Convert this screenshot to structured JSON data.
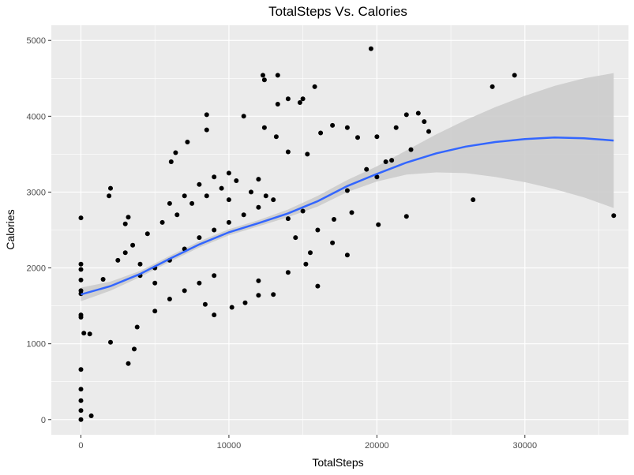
{
  "chart_data": {
    "type": "scatter",
    "title": "TotalSteps Vs. Calories",
    "xlabel": "TotalSteps",
    "ylabel": "Calories",
    "xlim": [
      -2000,
      37000
    ],
    "ylim": [
      -200,
      5200
    ],
    "x_ticks": [
      0,
      10000,
      20000,
      30000
    ],
    "y_ticks": [
      0,
      1000,
      2000,
      3000,
      4000,
      5000
    ],
    "grid": true,
    "background": "#ebebeb",
    "grid_color": "#ffffff",
    "point_color": "#000000",
    "trend_color": "#3366ff",
    "band_color": "#cccccc",
    "points_sample": [
      [
        0,
        0
      ],
      [
        0,
        120
      ],
      [
        0,
        250
      ],
      [
        0,
        400
      ],
      [
        0,
        660
      ],
      [
        0,
        2660
      ],
      [
        0,
        1350
      ],
      [
        0,
        1380
      ],
      [
        0,
        1660
      ],
      [
        0,
        1700
      ],
      [
        0,
        1840
      ],
      [
        0,
        1980
      ],
      [
        0,
        2050
      ],
      [
        700,
        50
      ],
      [
        200,
        1140
      ],
      [
        600,
        1130
      ],
      [
        2000,
        1020
      ],
      [
        3200,
        740
      ],
      [
        3600,
        930
      ],
      [
        3800,
        1220
      ],
      [
        1900,
        2950
      ],
      [
        2000,
        3050
      ],
      [
        3000,
        2580
      ],
      [
        3200,
        2670
      ],
      [
        6100,
        3400
      ],
      [
        6400,
        3520
      ],
      [
        7200,
        3660
      ],
      [
        8500,
        3820
      ],
      [
        8500,
        4020
      ],
      [
        10000,
        3250
      ],
      [
        11000,
        4000
      ],
      [
        12000,
        3170
      ],
      [
        12400,
        3850
      ],
      [
        12300,
        4540
      ],
      [
        12400,
        4480
      ],
      [
        13300,
        4540
      ],
      [
        13300,
        4160
      ],
      [
        14000,
        4230
      ],
      [
        14800,
        4180
      ],
      [
        15000,
        4230
      ],
      [
        15800,
        4390
      ],
      [
        13200,
        3730
      ],
      [
        14000,
        3530
      ],
      [
        15300,
        3500
      ],
      [
        16200,
        3780
      ],
      [
        17000,
        3880
      ],
      [
        18000,
        3850
      ],
      [
        18700,
        3720
      ],
      [
        19600,
        4890
      ],
      [
        20000,
        3730
      ],
      [
        21300,
        3850
      ],
      [
        22000,
        4020
      ],
      [
        22800,
        4040
      ],
      [
        23200,
        3930
      ],
      [
        20100,
        2570
      ],
      [
        22000,
        2680
      ],
      [
        18000,
        3020
      ],
      [
        20000,
        3200
      ],
      [
        21000,
        3420
      ],
      [
        17100,
        2640
      ],
      [
        17000,
        2330
      ],
      [
        18300,
        2730
      ],
      [
        18000,
        2170
      ],
      [
        16000,
        1760
      ],
      [
        15200,
        2050
      ],
      [
        14000,
        1940
      ],
      [
        12000,
        1640
      ],
      [
        13000,
        1650
      ],
      [
        9000,
        1380
      ],
      [
        8400,
        1520
      ],
      [
        10200,
        1480
      ],
      [
        11100,
        1540
      ],
      [
        12000,
        1830
      ],
      [
        5000,
        1430
      ],
      [
        6000,
        1590
      ],
      [
        7000,
        1700
      ],
      [
        8000,
        1800
      ],
      [
        9000,
        1900
      ],
      [
        4000,
        1900
      ],
      [
        5000,
        2000
      ],
      [
        6000,
        2100
      ],
      [
        7000,
        2250
      ],
      [
        8000,
        2400
      ],
      [
        9000,
        2500
      ],
      [
        10000,
        2600
      ],
      [
        11000,
        2700
      ],
      [
        12000,
        2800
      ],
      [
        13000,
        2900
      ],
      [
        3500,
        2300
      ],
      [
        4500,
        2450
      ],
      [
        5500,
        2600
      ],
      [
        6500,
        2700
      ],
      [
        7500,
        2850
      ],
      [
        8500,
        2950
      ],
      [
        9500,
        3050
      ],
      [
        10500,
        3150
      ],
      [
        11500,
        3000
      ],
      [
        12500,
        2950
      ],
      [
        1500,
        1850
      ],
      [
        2500,
        2100
      ],
      [
        3000,
        2200
      ],
      [
        4000,
        2050
      ],
      [
        5000,
        1800
      ],
      [
        6000,
        2850
      ],
      [
        7000,
        2950
      ],
      [
        8000,
        3100
      ],
      [
        9000,
        3200
      ],
      [
        10000,
        2900
      ],
      [
        14000,
        2650
      ],
      [
        15000,
        2750
      ],
      [
        16000,
        2500
      ],
      [
        15500,
        2200
      ],
      [
        14500,
        2400
      ],
      [
        26500,
        2900
      ],
      [
        27800,
        4390
      ],
      [
        29300,
        4540
      ],
      [
        36000,
        2690
      ],
      [
        23500,
        3800
      ],
      [
        22300,
        3560
      ],
      [
        20600,
        3400
      ],
      [
        19300,
        3300
      ]
    ],
    "trend": {
      "x": [
        0,
        2000,
        4000,
        6000,
        8000,
        10000,
        12000,
        14000,
        16000,
        18000,
        20000,
        22000,
        24000,
        26000,
        28000,
        30000,
        32000,
        34000,
        36000
      ],
      "y": [
        1650,
        1760,
        1920,
        2120,
        2310,
        2470,
        2590,
        2720,
        2880,
        3080,
        3240,
        3390,
        3510,
        3600,
        3660,
        3700,
        3720,
        3710,
        3680
      ],
      "lower": [
        1560,
        1700,
        1880,
        2080,
        2270,
        2430,
        2550,
        2670,
        2810,
        3000,
        3140,
        3230,
        3260,
        3250,
        3200,
        3130,
        3040,
        2930,
        2790
      ],
      "upper": [
        1740,
        1820,
        1960,
        2160,
        2350,
        2510,
        2630,
        2770,
        2950,
        3160,
        3340,
        3550,
        3760,
        3950,
        4120,
        4270,
        4400,
        4500,
        4570
      ]
    }
  }
}
